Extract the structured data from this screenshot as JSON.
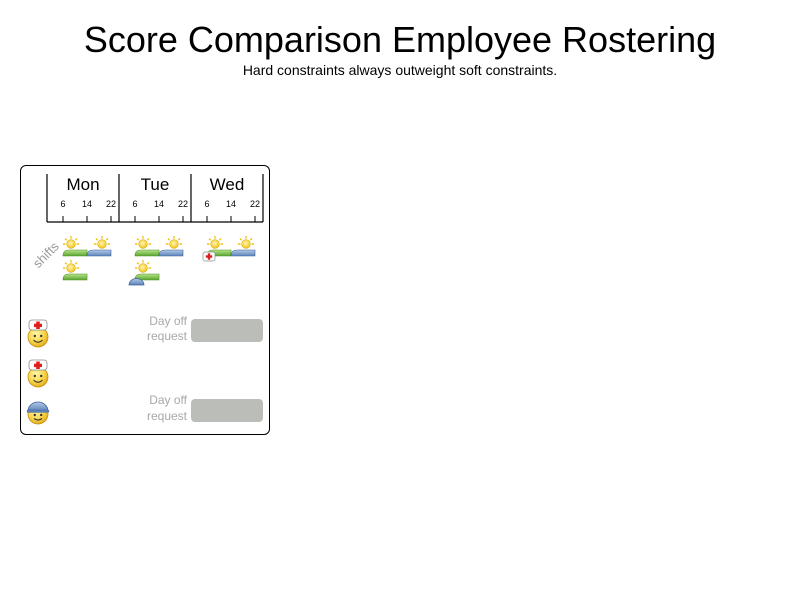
{
  "title": "Score Comparison Employee Rostering",
  "subtitle": "Hard constraints always outweight soft constraints.",
  "schedule": {
    "days": [
      {
        "name": "Mon",
        "hours": [
          "6",
          "14",
          "22"
        ]
      },
      {
        "name": "Tue",
        "hours": [
          "6",
          "14",
          "22"
        ]
      },
      {
        "name": "Wed",
        "hours": [
          "6",
          "14",
          "22"
        ]
      }
    ],
    "shifts_label": "shifts",
    "day_off_requests": [
      {
        "line1": "Day off",
        "line2": "request"
      },
      {
        "line1": "Day off",
        "line2": "request"
      }
    ],
    "employees": [
      {
        "role": "nurse",
        "icon": "nurse-icon"
      },
      {
        "role": "nurse",
        "icon": "nurse-icon"
      },
      {
        "role": "worker",
        "icon": "hardhat-worker-icon"
      }
    ],
    "colors": {
      "early_shift": "#7ac943",
      "late_shift": "#6f94c9",
      "request_block": "#bbbdb8",
      "sun": "#f7d21a"
    }
  }
}
